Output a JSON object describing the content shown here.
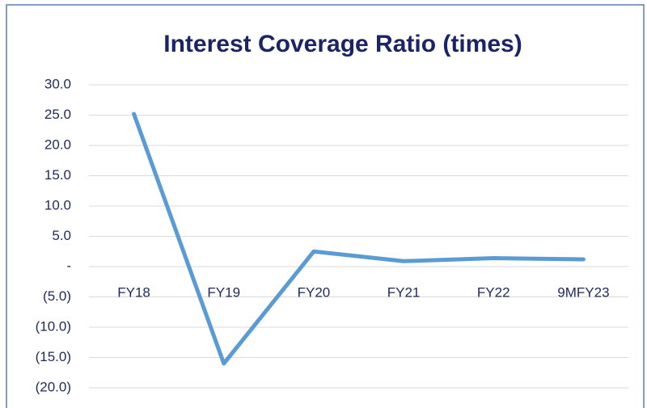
{
  "chart_data": {
    "type": "line",
    "title": "Interest Coverage Ratio (times)",
    "categories": [
      "FY18",
      "FY19",
      "FY20",
      "FY21",
      "FY22",
      "9MFY23"
    ],
    "series": [
      {
        "name": "Interest Coverage Ratio",
        "color": "#5b9bd5",
        "values": [
          25.2,
          -16.0,
          2.5,
          0.9,
          1.4,
          1.2
        ]
      }
    ],
    "ylim": [
      -20,
      30
    ],
    "yticks": [
      {
        "value": -20,
        "label": "(20.0)"
      },
      {
        "value": -15,
        "label": "(15.0)"
      },
      {
        "value": -10,
        "label": "(10.0)"
      },
      {
        "value": -5,
        "label": "(5.0)"
      },
      {
        "value": 0,
        "label": "-"
      },
      {
        "value": 5,
        "label": "5.0"
      },
      {
        "value": 10,
        "label": "10.0"
      },
      {
        "value": 15,
        "label": "15.0"
      },
      {
        "value": 20,
        "label": "20.0"
      },
      {
        "value": 25,
        "label": "25.0"
      },
      {
        "value": 30,
        "label": "30.0"
      }
    ],
    "grid": true
  }
}
